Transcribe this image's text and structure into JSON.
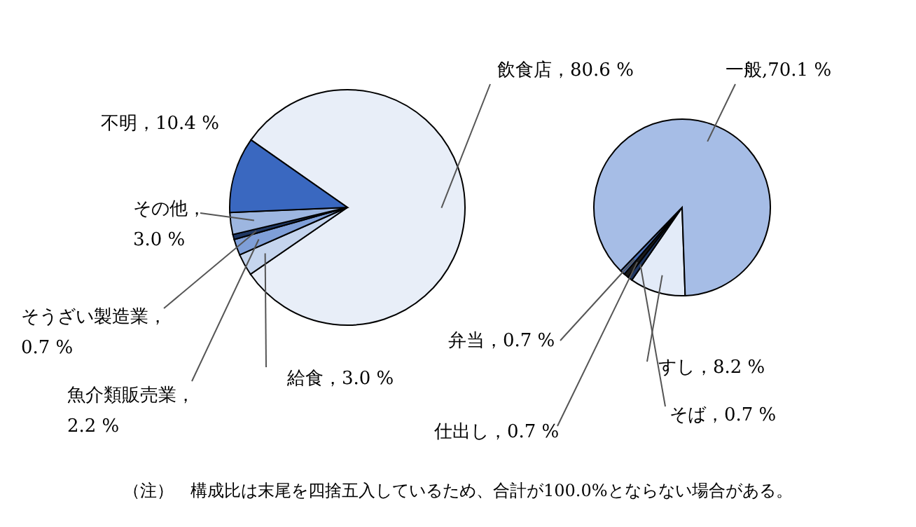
{
  "chart_data": [
    {
      "type": "pie",
      "categories": [
        "飲食店",
        "給食",
        "魚介類販売業",
        "そうざい製造業",
        "その他",
        "不明"
      ],
      "values": [
        80.6,
        3.0,
        2.2,
        0.7,
        3.0,
        10.4
      ],
      "colors": [
        "#e8eef8",
        "#c5d5ee",
        "#7f9fd8",
        "#203864",
        "#9db6e0",
        "#3a68c0"
      ],
      "value_labels": [
        "，80.6 %",
        "，3.0 %",
        "，\n2.2 %",
        "，\n0.7 %",
        "，\n3.0 %",
        "，10.4 %"
      ],
      "annotations": [
        "（注）　構成比は末尾を四捨五入しているため、合計が100.0%とならない場合がある。"
      ]
    },
    {
      "type": "pie",
      "categories": [
        "すし",
        "そば",
        "仕出し",
        "弁当",
        "一般"
      ],
      "values": [
        8.2,
        0.7,
        0.7,
        0.7,
        70.1
      ],
      "colors": [
        "#e3ebf8",
        "#203864",
        "#1a1a1a",
        "#4a6fb5",
        "#a6bde6"
      ],
      "value_labels": [
        "，8.2 %",
        "，0.7 %",
        "，0.7 %",
        "，0.7 %",
        ",70.1 %"
      ]
    }
  ]
}
